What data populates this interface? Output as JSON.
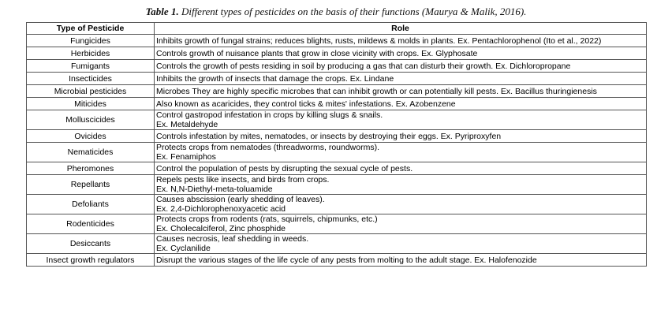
{
  "caption": {
    "label": "Table 1.",
    "text": "Different types of pesticides on the basis of their functions (Maurya & Malik, 2016)."
  },
  "table": {
    "headers": [
      "Type of Pesticide",
      "Role"
    ],
    "rows": [
      {
        "type": "Fungicides",
        "role": [
          "Inhibits growth of fungal strains; reduces blights, rusts, mildews & molds in plants. Ex. Pentachlorophenol (Ito et al., 2022)"
        ]
      },
      {
        "type": "Herbicides",
        "role": [
          "Controls growth of nuisance plants that grow in close vicinity with crops. Ex. Glyphosate"
        ]
      },
      {
        "type": "Fumigants",
        "role": [
          "Controls the growth of pests residing in soil by producing a gas that can disturb their growth. Ex. Dichloropropane"
        ]
      },
      {
        "type": "Insecticides",
        "role": [
          "Inhibits the growth of insects that damage the crops. Ex. Lindane"
        ]
      },
      {
        "type": "Microbial pesticides",
        "role": [
          "Microbes They are highly specific microbes that can inhibit growth or can potentially kill pests. Ex. Bacillus thuringienesis"
        ]
      },
      {
        "type": "Miticides",
        "role": [
          "Also known as acaricides, they control ticks & mites' infestations. Ex. Azobenzene"
        ]
      },
      {
        "type": "Molluscicides",
        "role": [
          "Control gastropod infestation in crops by killing slugs & snails.",
          "Ex. Metaldehyde"
        ]
      },
      {
        "type": "Ovicides",
        "role": [
          "Controls infestation by mites, nematodes, or insects by destroying their eggs. Ex. Pyriproxyfen"
        ]
      },
      {
        "type": "Nematicides",
        "role": [
          "Protects crops from nematodes (threadworms, roundworms).",
          "Ex. Fenamiphos"
        ]
      },
      {
        "type": "Pheromones",
        "role": [
          "Control the population of pests by disrupting the sexual cycle of pests."
        ]
      },
      {
        "type": "Repellants",
        "role": [
          "Repels pests like insects, and birds from crops.",
          "Ex. N,N-Diethyl-meta-toluamide"
        ]
      },
      {
        "type": "Defoliants",
        "role": [
          "Causes abscission (early shedding of leaves).",
          "Ex. 2,4-Dichlorophenoxyacetic acid"
        ]
      },
      {
        "type": "Rodenticides",
        "role": [
          "Protects crops from rodents (rats, squirrels, chipmunks, etc.)",
          "Ex. Cholecalciferol, Zinc phosphide"
        ]
      },
      {
        "type": "Desiccants",
        "role": [
          "Causes necrosis, leaf shedding in weeds.",
          "Ex. Cyclanilide"
        ]
      },
      {
        "type": "Insect growth regulators",
        "role": [
          "Disrupt the various stages of the life cycle of any pests from molting to the adult stage. Ex. Halofenozide"
        ]
      }
    ]
  }
}
